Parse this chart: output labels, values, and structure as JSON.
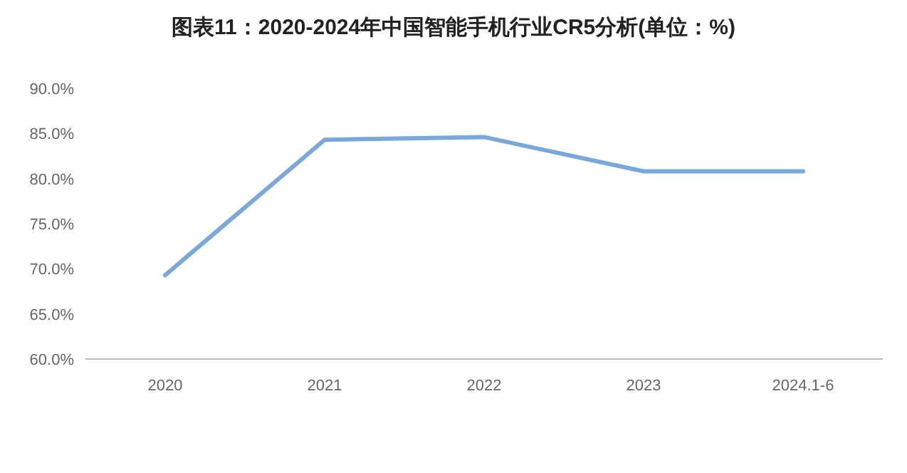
{
  "chart_data": {
    "type": "line",
    "title": "图表11：2020-2024年中国智能手机行业CR5分析(单位：%)",
    "categories": [
      "2020",
      "2021",
      "2022",
      "2023",
      "2024.1-6"
    ],
    "series": [
      {
        "color": "#7ba7d9",
        "values": [
          69.3,
          84.3,
          84.6,
          80.8,
          80.8
        ]
      }
    ],
    "ylim": [
      60,
      90
    ],
    "yticks": [
      {
        "value": 60,
        "label": "60.0%"
      },
      {
        "value": 65,
        "label": "65.0%"
      },
      {
        "value": 70,
        "label": "70.0%"
      },
      {
        "value": 75,
        "label": "75.0%"
      },
      {
        "value": 80,
        "label": "80.0%"
      },
      {
        "value": 85,
        "label": "85.0%"
      },
      {
        "value": 90,
        "label": "90.0%"
      }
    ],
    "grid": false,
    "marker": "none",
    "line_style": "solid"
  }
}
